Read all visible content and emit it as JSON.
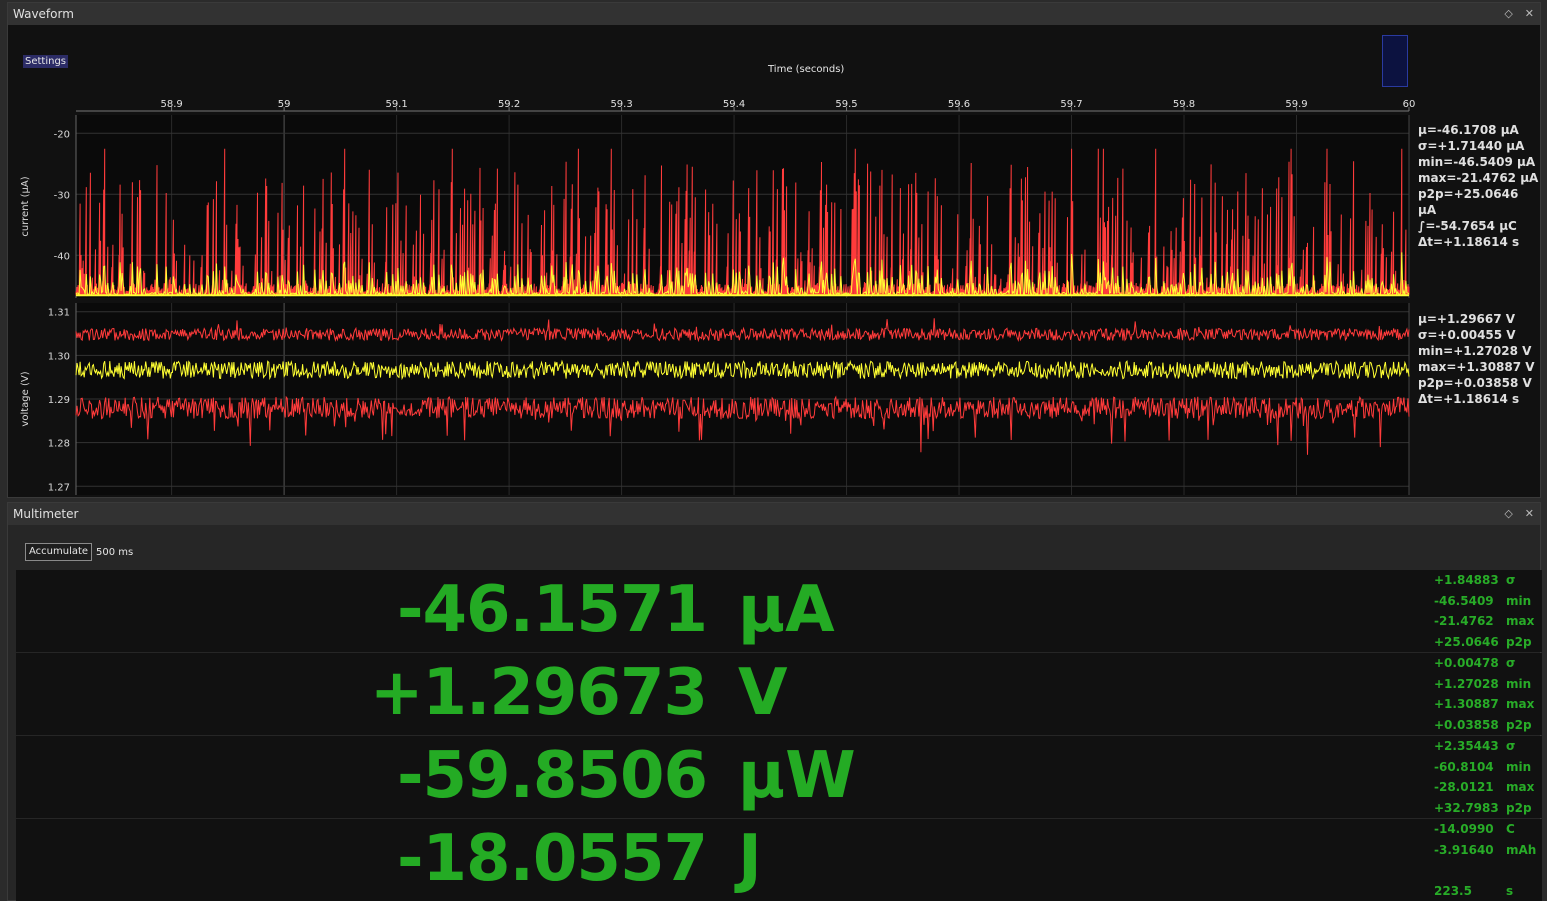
{
  "waveform": {
    "title": "Waveform",
    "settings_label": "Settings",
    "x_axis_title": "Time (seconds)",
    "x_ticks": [
      "58.9",
      "59",
      "59.1",
      "59.2",
      "59.3",
      "59.4",
      "59.5",
      "59.6",
      "59.7",
      "59.8",
      "59.9",
      "60"
    ],
    "current": {
      "ylabel": "current (µA)",
      "y_ticks": [
        "-20",
        "-30",
        "-40"
      ],
      "stats": [
        "µ=-46.1708 µA",
        "σ=+1.71440 µA",
        "min=-46.5409 µA",
        "max=-21.4762 µA",
        "p2p=+25.0646 µA",
        "∫=-54.7654 µC",
        "Δt=+1.18614  s"
      ]
    },
    "voltage": {
      "ylabel": "voltage (V)",
      "y_ticks": [
        "1.31",
        "1.30",
        "1.29",
        "1.28",
        "1.27"
      ],
      "stats": [
        "µ=+1.29667  V",
        "σ=+0.00455  V",
        "min=+1.27028  V",
        "max=+1.30887  V",
        "p2p=+0.03858  V",
        "Δt=+1.18614  s"
      ]
    },
    "colors": {
      "minmax": "#ff3b3b",
      "mean": "#ffff33",
      "grid": "#3a3a3a"
    }
  },
  "chart_data": [
    {
      "type": "line",
      "title": "",
      "xlabel": "Time (seconds)",
      "ylabel": "current (µA)",
      "xlim": [
        58.815,
        60.0
      ],
      "ylim": [
        -47,
        -17
      ],
      "series": [],
      "summary": {
        "mean": -46.1708,
        "std": 1.7144,
        "min": -46.5409,
        "max": -21.4762,
        "p2p": 25.0646,
        "integral_uC": -54.7654,
        "dt_s": 1.18614
      }
    },
    {
      "type": "line",
      "title": "",
      "xlabel": "Time (seconds)",
      "ylabel": "voltage (V)",
      "xlim": [
        58.815,
        60.0
      ],
      "ylim": [
        1.268,
        1.312
      ],
      "series": [],
      "summary": {
        "mean": 1.29667,
        "std": 0.00455,
        "min": 1.27028,
        "max": 1.30887,
        "p2p": 0.03858,
        "dt_s": 1.18614
      }
    }
  ],
  "multimeter": {
    "title": "Multimeter",
    "accumulate_label": "Accumulate",
    "interval": "500 ms",
    "rows": [
      {
        "value": "-46.1571",
        "unit": "µA",
        "stats": [
          {
            "v": "+1.84883",
            "l": "σ"
          },
          {
            "v": "-46.5409",
            "l": "min"
          },
          {
            "v": "-21.4762",
            "l": "max"
          },
          {
            "v": "+25.0646",
            "l": "p2p"
          }
        ]
      },
      {
        "value": "+1.29673",
        "unit": "V",
        "stats": [
          {
            "v": "+0.00478",
            "l": "σ"
          },
          {
            "v": "+1.27028",
            "l": "min"
          },
          {
            "v": "+1.30887",
            "l": "max"
          },
          {
            "v": "+0.03858",
            "l": "p2p"
          }
        ]
      },
      {
        "value": "-59.8506",
        "unit": "µW",
        "stats": [
          {
            "v": "+2.35443",
            "l": "σ"
          },
          {
            "v": "-60.8104",
            "l": "min"
          },
          {
            "v": "-28.0121",
            "l": "max"
          },
          {
            "v": "+32.7983",
            "l": "p2p"
          }
        ]
      },
      {
        "value": "-18.0557",
        "unit": "J",
        "stats": [
          {
            "v": "-14.0990",
            "l": "C"
          },
          {
            "v": "-3.91640",
            "l": "mAh"
          },
          {
            "v": "",
            "l": ""
          },
          {
            "v": "223.5",
            "l": "s"
          }
        ]
      }
    ]
  }
}
